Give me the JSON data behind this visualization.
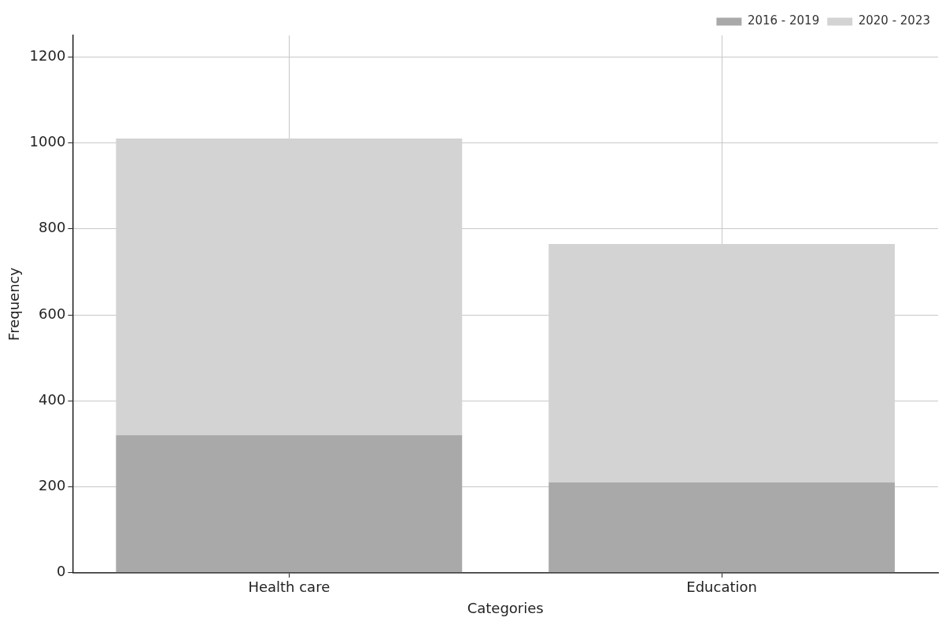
{
  "chart_data": {
    "type": "bar",
    "xlabel": "Categories",
    "ylabel": "Frequency",
    "categories": [
      "Health care",
      "Education"
    ],
    "stacked": true,
    "series": [
      {
        "name": "2016 - 2019",
        "color": "#a9a9a9",
        "values": [
          320,
          210
        ]
      },
      {
        "name": "2020 - 2023",
        "color": "#d3d3d3",
        "values": [
          690,
          555
        ]
      }
    ],
    "ylim": [
      0,
      1250
    ],
    "yticks": [
      0,
      200,
      400,
      600,
      800,
      1000,
      1200
    ],
    "grid": true,
    "legend": "top right"
  }
}
